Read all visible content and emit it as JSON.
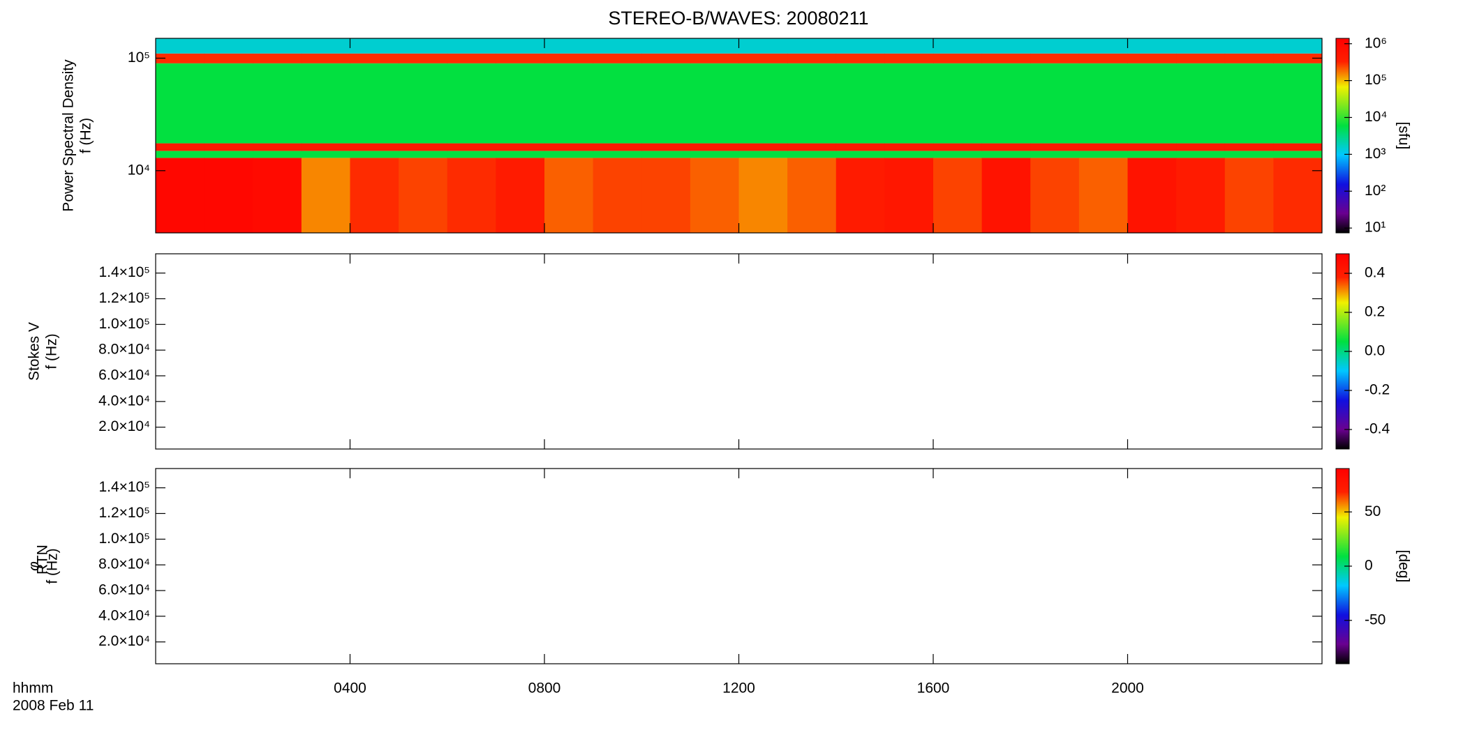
{
  "title": "STEREO-B/WAVES: 20080211",
  "x_axis": {
    "xlim": [
      0,
      24
    ],
    "xticks": [
      {
        "value": 4,
        "label": "0400"
      },
      {
        "value": 8,
        "label": "0800"
      },
      {
        "value": 12,
        "label": "1200"
      },
      {
        "value": 16,
        "label": "1600"
      },
      {
        "value": 20,
        "label": "2000"
      }
    ],
    "label": "hhmm",
    "date": "2008 Feb 11"
  },
  "chart_data": [
    {
      "type": "heatmap",
      "ylabel": "Power Spectral Density",
      "ylabel2": "f (Hz)",
      "ylog": true,
      "ylim": [
        2800,
        150000
      ],
      "yticks": [
        {
          "value": 10000,
          "label": "10⁴"
        },
        {
          "value": 100000,
          "label": "10⁵"
        }
      ],
      "xbins": [
        0,
        1,
        2,
        3,
        4,
        5,
        6,
        7,
        8,
        9,
        10,
        11,
        12,
        13,
        14,
        15,
        16,
        17,
        18,
        19,
        20,
        21,
        22,
        23,
        24
      ],
      "ybins": [
        2800,
        13000,
        15000,
        17500,
        90000,
        110000,
        150000
      ],
      "values": [
        [
          1000000,
          1000000,
          900000,
          150000,
          300000,
          250000,
          300000,
          400000,
          200000,
          250000,
          250000,
          200000,
          150000,
          200000,
          400000,
          500000,
          250000,
          600000,
          250000,
          200000,
          600000,
          400000,
          250000,
          300000
        ],
        [
          6000,
          6000,
          6000,
          6000,
          6000,
          6000,
          6000,
          6000,
          6000,
          6000,
          6000,
          6000,
          6000,
          6000,
          6000,
          6000,
          6000,
          6000,
          6000,
          6000,
          6000,
          6000,
          6000,
          6000
        ],
        [
          500000,
          500000,
          500000,
          500000,
          500000,
          500000,
          500000,
          500000,
          500000,
          500000,
          500000,
          500000,
          500000,
          500000,
          500000,
          500000,
          500000,
          500000,
          500000,
          500000,
          500000,
          500000,
          500000,
          500000
        ],
        [
          6000,
          6000,
          6000,
          6000,
          6000,
          6000,
          6000,
          6000,
          6000,
          6000,
          6000,
          6000,
          6000,
          6000,
          6000,
          6000,
          6000,
          6000,
          6000,
          6000,
          6000,
          6000,
          6000,
          6000
        ],
        [
          300000,
          300000,
          300000,
          300000,
          300000,
          300000,
          300000,
          300000,
          300000,
          300000,
          300000,
          300000,
          300000,
          300000,
          300000,
          300000,
          300000,
          300000,
          300000,
          300000,
          300000,
          300000,
          300000,
          300000
        ],
        [
          1500,
          1500,
          1500,
          1500,
          1500,
          1500,
          1500,
          1500,
          1500,
          1500,
          1500,
          1500,
          1500,
          1500,
          1500,
          1500,
          1500,
          1500,
          1500,
          1500,
          1500,
          1500,
          1500,
          1500
        ]
      ],
      "zlog": true,
      "zlim": [
        7.4,
        1400000
      ],
      "zticks": [
        {
          "value": 10,
          "label": "10¹"
        },
        {
          "value": 100,
          "label": "10²"
        },
        {
          "value": 1000,
          "label": "10³"
        },
        {
          "value": 10000,
          "label": "10⁴"
        },
        {
          "value": 100000,
          "label": "10⁵"
        },
        {
          "value": 1000000,
          "label": "10⁶"
        }
      ],
      "zlabel": "[sfu]",
      "colormap": "rainbow"
    },
    {
      "type": "heatmap",
      "ylabel": "Stokes V",
      "ylabel2": "f (Hz)",
      "ylog": false,
      "ylim": [
        3000,
        155000
      ],
      "yticks": [
        {
          "value": 20000,
          "label": "2.0×10⁴"
        },
        {
          "value": 40000,
          "label": "4.0×10⁴"
        },
        {
          "value": 60000,
          "label": "6.0×10⁴"
        },
        {
          "value": 80000,
          "label": "8.0×10⁴"
        },
        {
          "value": 100000,
          "label": "1.0×10⁵"
        },
        {
          "value": 120000,
          "label": "1.2×10⁵"
        },
        {
          "value": 140000,
          "label": "1.4×10⁵"
        }
      ],
      "zlog": false,
      "zlim": [
        -0.5,
        0.5
      ],
      "zticks": [
        -0.4,
        -0.2,
        {
          "value": 0,
          "label": "0.0"
        },
        0.2,
        0.4
      ],
      "colormap": "rainbow"
    },
    {
      "type": "heatmap",
      "ylabel": "φ",
      "ylabel_sub": "RTN",
      "ylabel2": "f (Hz)",
      "ylog": false,
      "ylim": [
        3000,
        155000
      ],
      "yticks": [
        {
          "value": 20000,
          "label": "2.0×10⁴"
        },
        {
          "value": 40000,
          "label": "4.0×10⁴"
        },
        {
          "value": 60000,
          "label": "6.0×10⁴"
        },
        {
          "value": 80000,
          "label": "8.0×10⁴"
        },
        {
          "value": 100000,
          "label": "1.0×10⁵"
        },
        {
          "value": 120000,
          "label": "1.2×10⁵"
        },
        {
          "value": 140000,
          "label": "1.4×10⁵"
        }
      ],
      "zlog": false,
      "zlim": [
        -90,
        90
      ],
      "zticks": [
        -50,
        0,
        50
      ],
      "zlabel": "[deg]",
      "colormap": "rainbow"
    }
  ]
}
